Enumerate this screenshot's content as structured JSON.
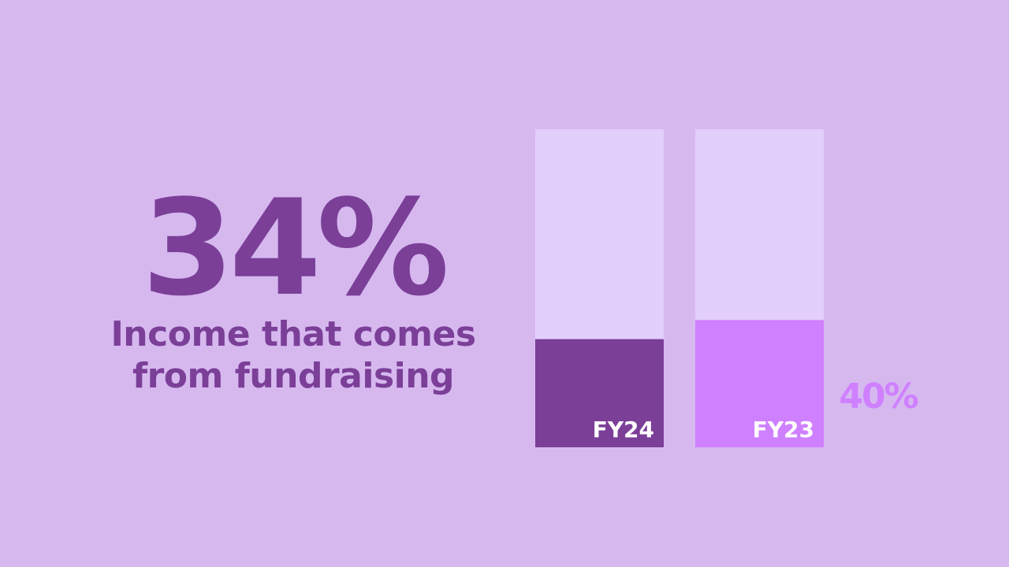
{
  "chart_data": {
    "type": "bar",
    "caption": "Income that comes from fundraising",
    "categories": [
      "FY24",
      "FY23"
    ],
    "values": [
      34,
      40
    ],
    "value_labels": [
      "34%",
      "40%"
    ],
    "colors": [
      "#7b3f98",
      "#cf80ff"
    ],
    "track_color": "#e2cffc",
    "ylim": [
      0,
      100
    ]
  }
}
